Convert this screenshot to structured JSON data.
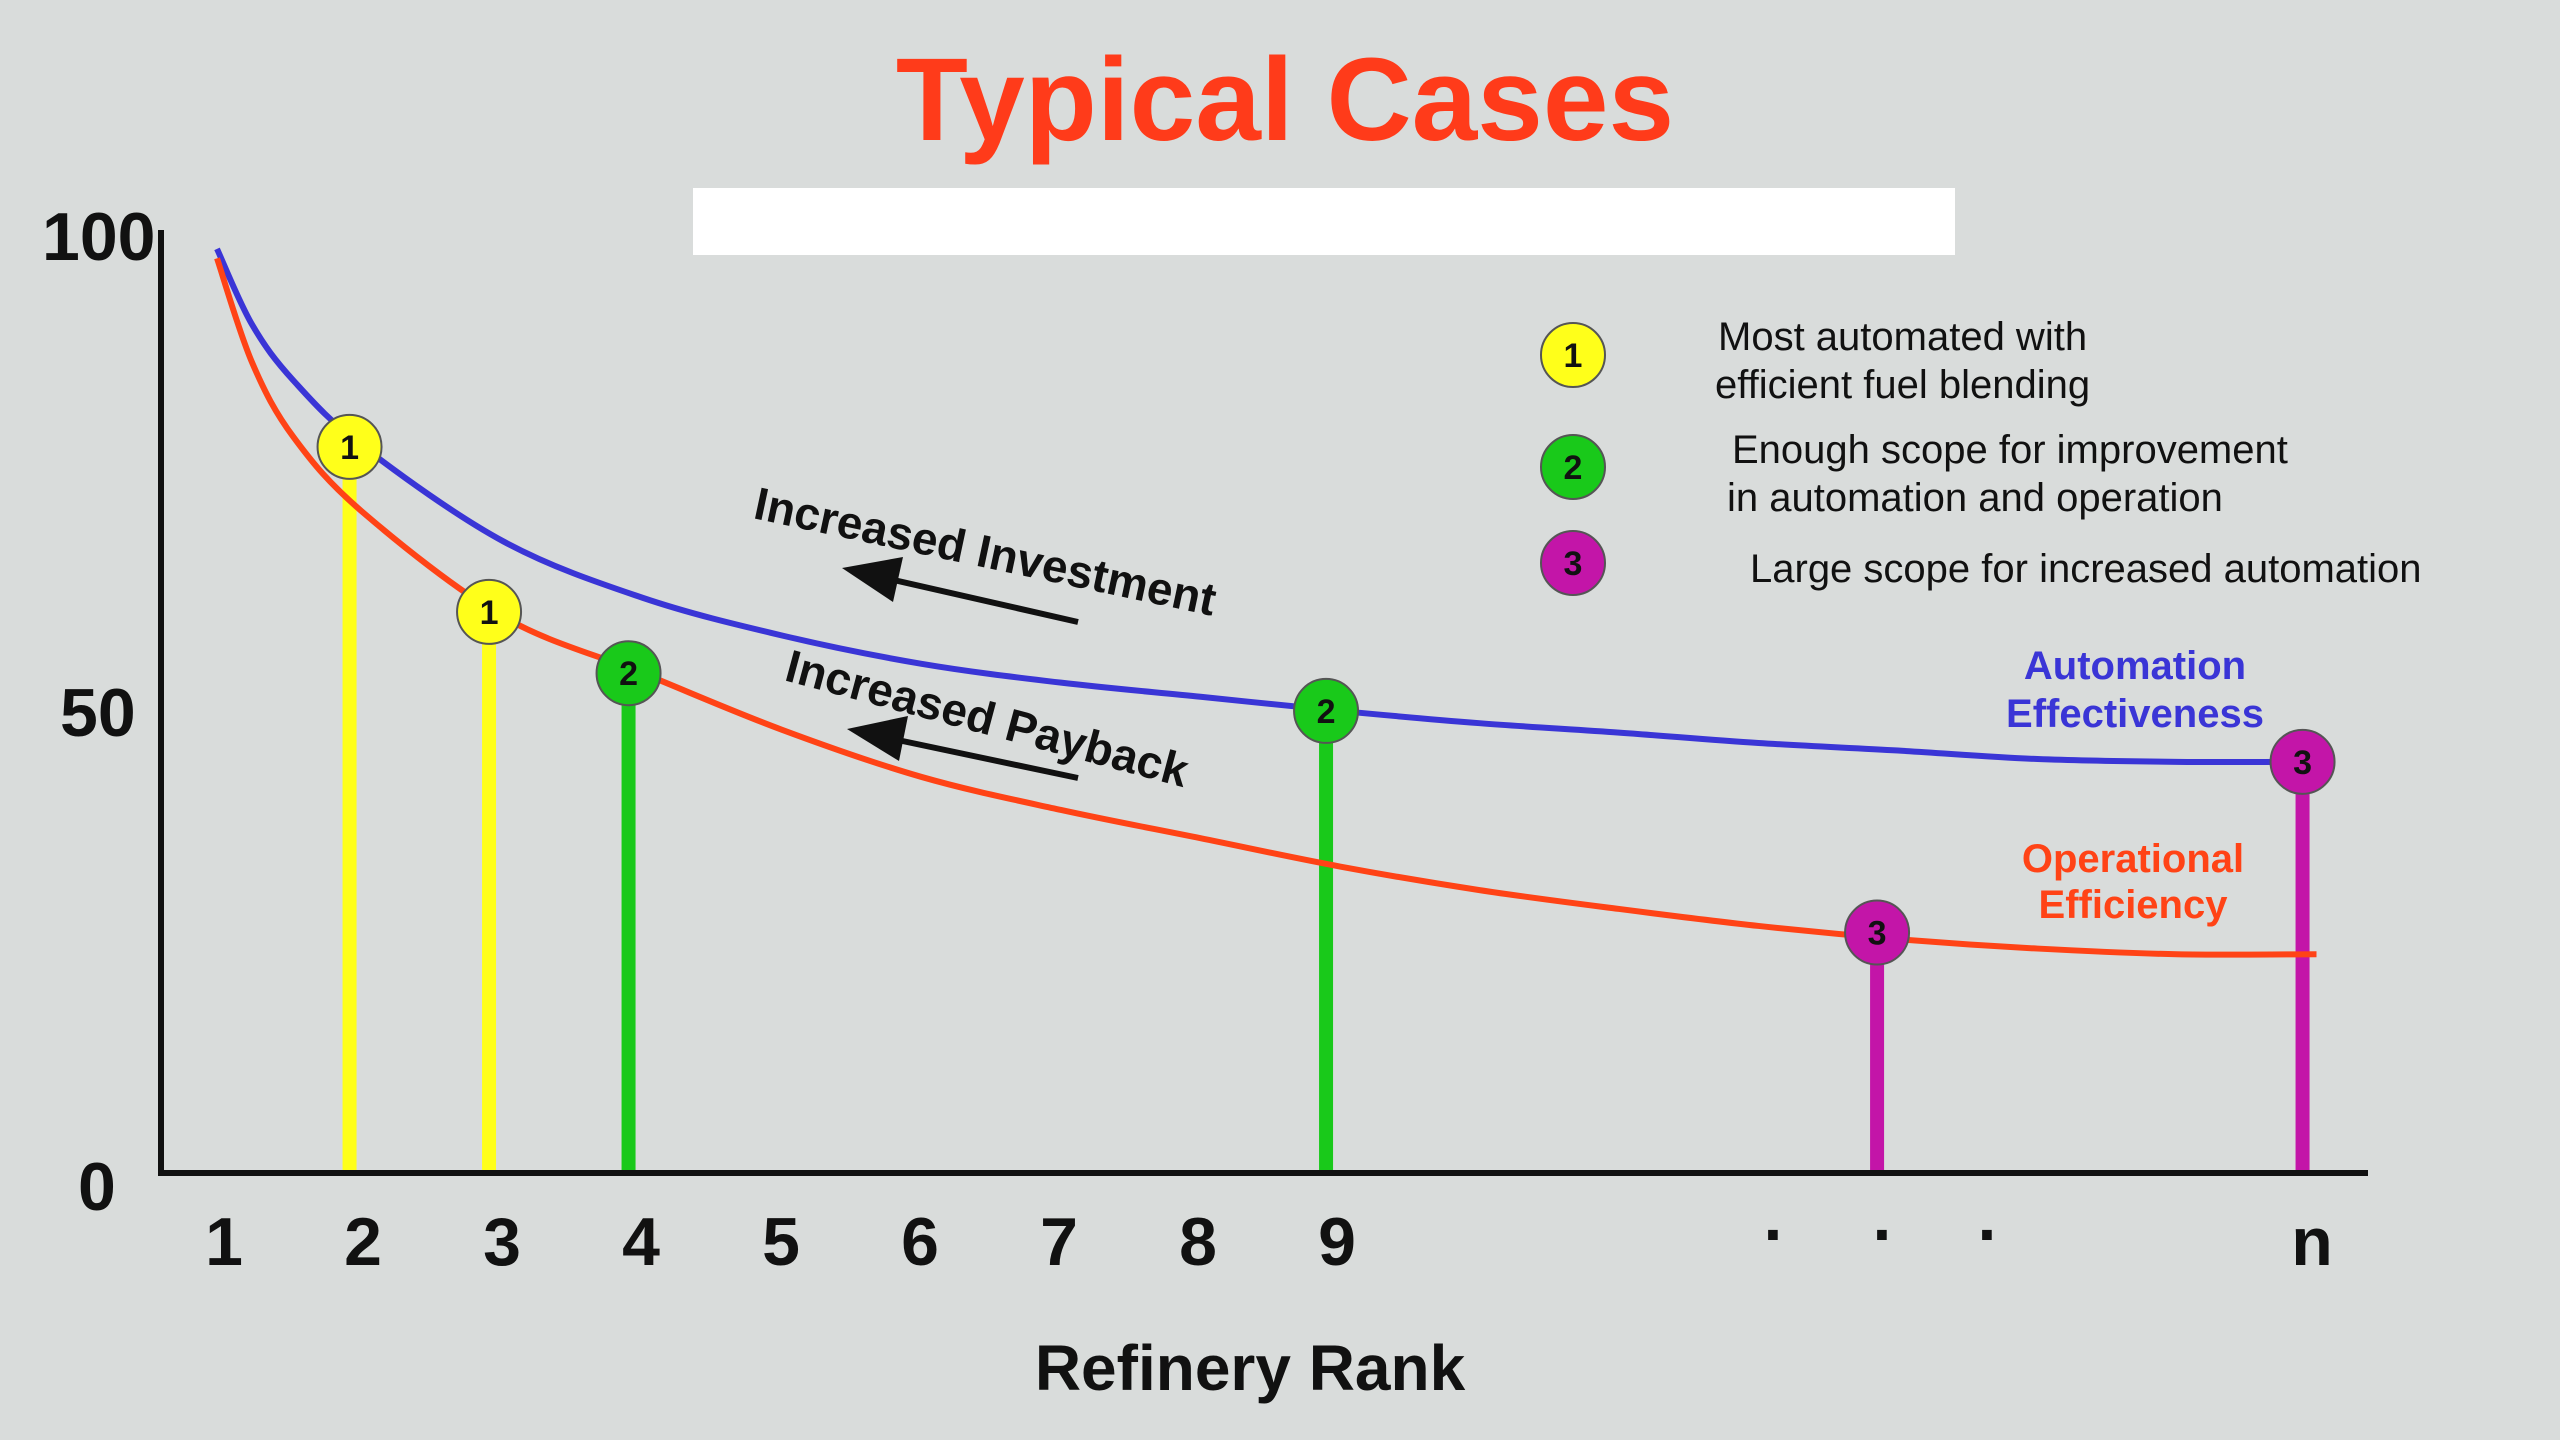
{
  "colors": {
    "background": "#d9dcdb",
    "title": "#ff3b1a",
    "automation_line": "#3a35d6",
    "operational_line": "#ff4316",
    "case1": "#ffff1a",
    "case2": "#19c91a",
    "case3": "#c315a8",
    "axis": "#111111"
  },
  "chart_data": {
    "type": "line",
    "title": "Typical Cases",
    "xlabel": "Refinery Rank",
    "ylabel": "",
    "ylim": [
      0,
      100
    ],
    "y_ticks": [
      "0",
      "50",
      "100"
    ],
    "x_tick_labels": [
      "1",
      "2",
      "3",
      "4",
      "5",
      "6",
      "7",
      "8",
      "9",
      ".",
      ".",
      ".",
      "n"
    ],
    "series": [
      {
        "name": "Automation Effectiveness",
        "color": "#3a35d6",
        "points": [
          {
            "x": 0.95,
            "y": 98
          },
          {
            "x": 1.2,
            "y": 90
          },
          {
            "x": 1.5,
            "y": 84
          },
          {
            "x": 2,
            "y": 77
          },
          {
            "x": 3,
            "y": 67
          },
          {
            "x": 4,
            "y": 61
          },
          {
            "x": 5,
            "y": 57
          },
          {
            "x": 6,
            "y": 54
          },
          {
            "x": 7,
            "y": 52
          },
          {
            "x": 8,
            "y": 50.5
          },
          {
            "x": 9,
            "y": 49
          },
          {
            "x": 10,
            "y": 47.7
          },
          {
            "x": 11,
            "y": 46.7
          },
          {
            "x": 12,
            "y": 45.6
          },
          {
            "x": 13,
            "y": 44.8
          },
          {
            "x": 14,
            "y": 43.9
          },
          {
            "x": 15,
            "y": 43.6
          },
          {
            "x": 16,
            "y": 43.6
          }
        ]
      },
      {
        "name": "Operational Efficiency",
        "color": "#ff4316",
        "points": [
          {
            "x": 0.95,
            "y": 97
          },
          {
            "x": 1.2,
            "y": 86
          },
          {
            "x": 1.5,
            "y": 78
          },
          {
            "x": 2,
            "y": 70
          },
          {
            "x": 3,
            "y": 59
          },
          {
            "x": 4,
            "y": 53
          },
          {
            "x": 5,
            "y": 47
          },
          {
            "x": 6,
            "y": 42
          },
          {
            "x": 7,
            "y": 38.5
          },
          {
            "x": 8,
            "y": 35.5
          },
          {
            "x": 9,
            "y": 32.5
          },
          {
            "x": 10,
            "y": 30
          },
          {
            "x": 11,
            "y": 28
          },
          {
            "x": 12,
            "y": 26.2
          },
          {
            "x": 13,
            "y": 24.8
          },
          {
            "x": 14,
            "y": 23.8
          },
          {
            "x": 15,
            "y": 23.2
          },
          {
            "x": 16,
            "y": 23.2
          }
        ]
      }
    ],
    "cases": [
      {
        "label": "1",
        "case": 1,
        "x": 1.9,
        "y": 77
      },
      {
        "label": "1",
        "case": 1,
        "x": 2.9,
        "y": 59.5
      },
      {
        "label": "2",
        "case": 2,
        "x": 3.9,
        "y": 53
      },
      {
        "label": "2",
        "case": 2,
        "x": 8.9,
        "y": 49
      },
      {
        "label": "3",
        "case": 3,
        "x": 12.85,
        "y": 25.5
      },
      {
        "label": "3",
        "case": 3,
        "x": 15.9,
        "y": 43.6
      }
    ],
    "legend": {
      "placement": "top-right",
      "items": [
        {
          "number": "1",
          "case": 1,
          "lines": [
            "Most automated with",
            "efficient fuel blending"
          ]
        },
        {
          "number": "2",
          "case": 2,
          "lines": [
            "Enough scope for improvement",
            "in automation and operation"
          ]
        },
        {
          "number": "3",
          "case": 3,
          "lines": [
            "Large scope for increased automation"
          ]
        }
      ]
    },
    "series_labels": {
      "automation": [
        "Automation",
        "Effectiveness"
      ],
      "operational": [
        "Operational",
        "Efficiency"
      ]
    },
    "annotations": {
      "investment": "Increased Investment",
      "payback": "Increased Payback"
    }
  }
}
